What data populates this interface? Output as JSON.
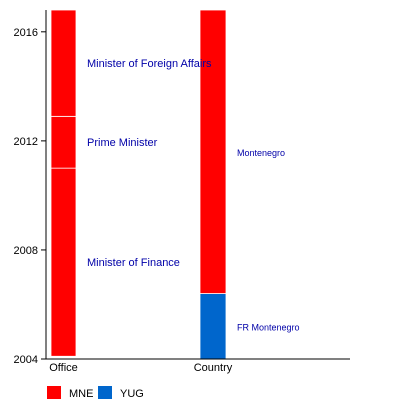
{
  "chart_data": {
    "type": "bar",
    "stacked": true,
    "orientation": "vertical",
    "categories": [
      "Office",
      "Country"
    ],
    "ylim": [
      2004,
      2016.8
    ],
    "yticks": [
      "2004",
      "2008",
      "2012",
      "2016"
    ],
    "grid": false,
    "legend_position": "bottom-left",
    "segments": [
      {
        "category": "Office",
        "from": 2004.1,
        "to": 2011.0,
        "color": "#ff0000",
        "label": "Minister of Finance",
        "label_size": "big"
      },
      {
        "category": "Office",
        "from": 2011.0,
        "to": 2012.9,
        "color": "#ff0000",
        "label": "Prime Minister",
        "label_size": "big"
      },
      {
        "category": "Office",
        "from": 2012.9,
        "to": 2016.8,
        "color": "#ff0000",
        "label": "Minister of Foreign Affairs",
        "label_size": "big"
      },
      {
        "category": "Country",
        "from": 2004.0,
        "to": 2006.4,
        "color": "#0066cc",
        "label": "FR Montenegro",
        "label_size": "small"
      },
      {
        "category": "Country",
        "from": 2006.4,
        "to": 2016.8,
        "color": "#ff0000",
        "label": "Montenegro",
        "label_size": "small"
      }
    ],
    "legend": [
      {
        "name": "MNE",
        "color": "#ff0000"
      },
      {
        "name": "YUG",
        "color": "#0066cc"
      }
    ]
  }
}
